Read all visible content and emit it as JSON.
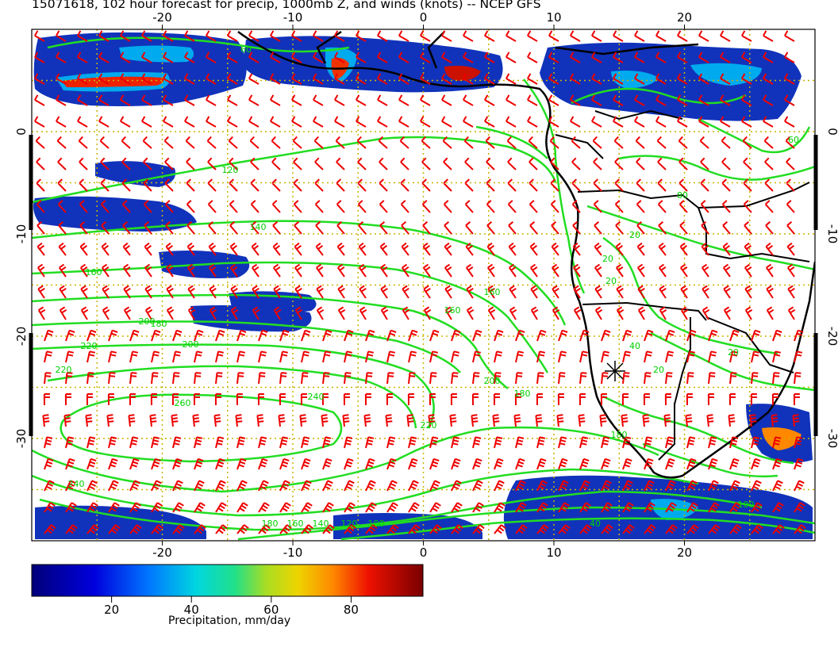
{
  "title": "15071618, 102 hour forecast for precip, 1000mb Z, and winds (knots) -- NCEP GFS",
  "map": {
    "lon_range": [
      -30,
      30
    ],
    "lat_range": [
      -40,
      10
    ],
    "lon_ticks": [
      "-20",
      "-10",
      "0",
      "10",
      "20"
    ],
    "lat_ticks": [
      "0",
      "-10",
      "-20",
      "-30"
    ],
    "grid": "dotted",
    "colors": {
      "contour": "#22dd22",
      "barb": "#ee0000",
      "coast": "#000000",
      "grid": "#c8b400"
    },
    "contour_labels": [
      "60",
      "120",
      "140",
      "160",
      "160",
      "160",
      "180",
      "180",
      "200",
      "200",
      "220",
      "220",
      "240",
      "240",
      "260",
      "220",
      "20",
      "20",
      "20",
      "40",
      "20",
      "60",
      "80",
      "20",
      "100",
      "40",
      "180",
      "160",
      "140",
      "120",
      "100",
      "200",
      "180"
    ],
    "marker_icon": "asterisk-icon"
  },
  "colorbar": {
    "ticks": [
      "20",
      "40",
      "60",
      "80"
    ],
    "label": "Precipitation, mm/day",
    "range": [
      0,
      98
    ]
  }
}
